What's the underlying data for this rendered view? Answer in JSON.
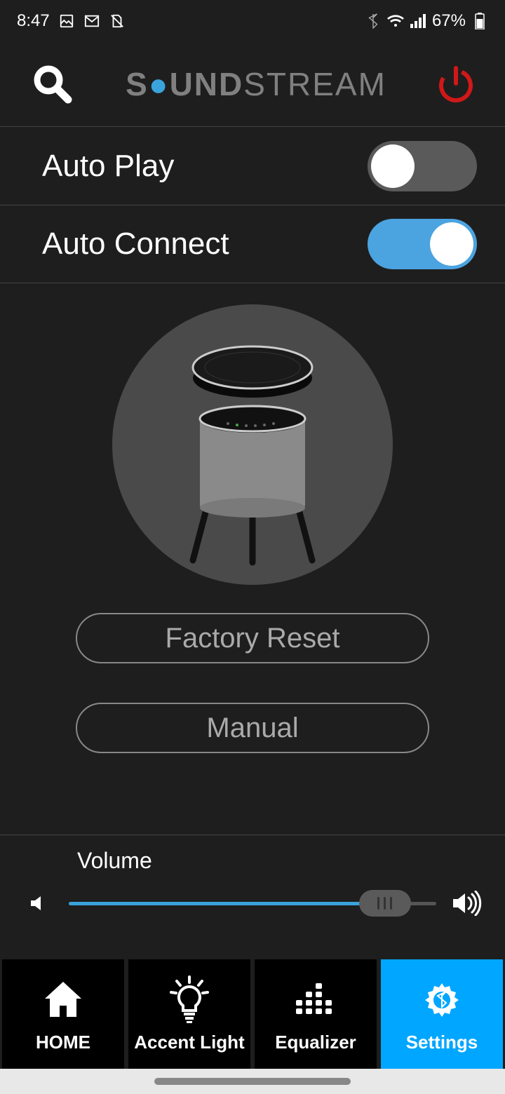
{
  "statusBar": {
    "time": "8:47",
    "batteryPercent": "67%"
  },
  "header": {
    "logoPart1": "S",
    "logoO": "O",
    "logoPart2": "UND",
    "logoPart3": "STREAM"
  },
  "toggles": {
    "autoPlay": {
      "label": "Auto Play",
      "on": false
    },
    "autoConnect": {
      "label": "Auto Connect",
      "on": true
    }
  },
  "buttons": {
    "factoryReset": "Factory Reset",
    "manual": "Manual"
  },
  "volume": {
    "label": "Volume",
    "percent": 86
  },
  "nav": {
    "home": "HOME",
    "accentLight": "Accent Light",
    "equalizer": "Equalizer",
    "settings": "Settings"
  },
  "colors": {
    "accent": "#3aa3dc",
    "navActive": "#00a6ff",
    "power": "#d01818"
  }
}
